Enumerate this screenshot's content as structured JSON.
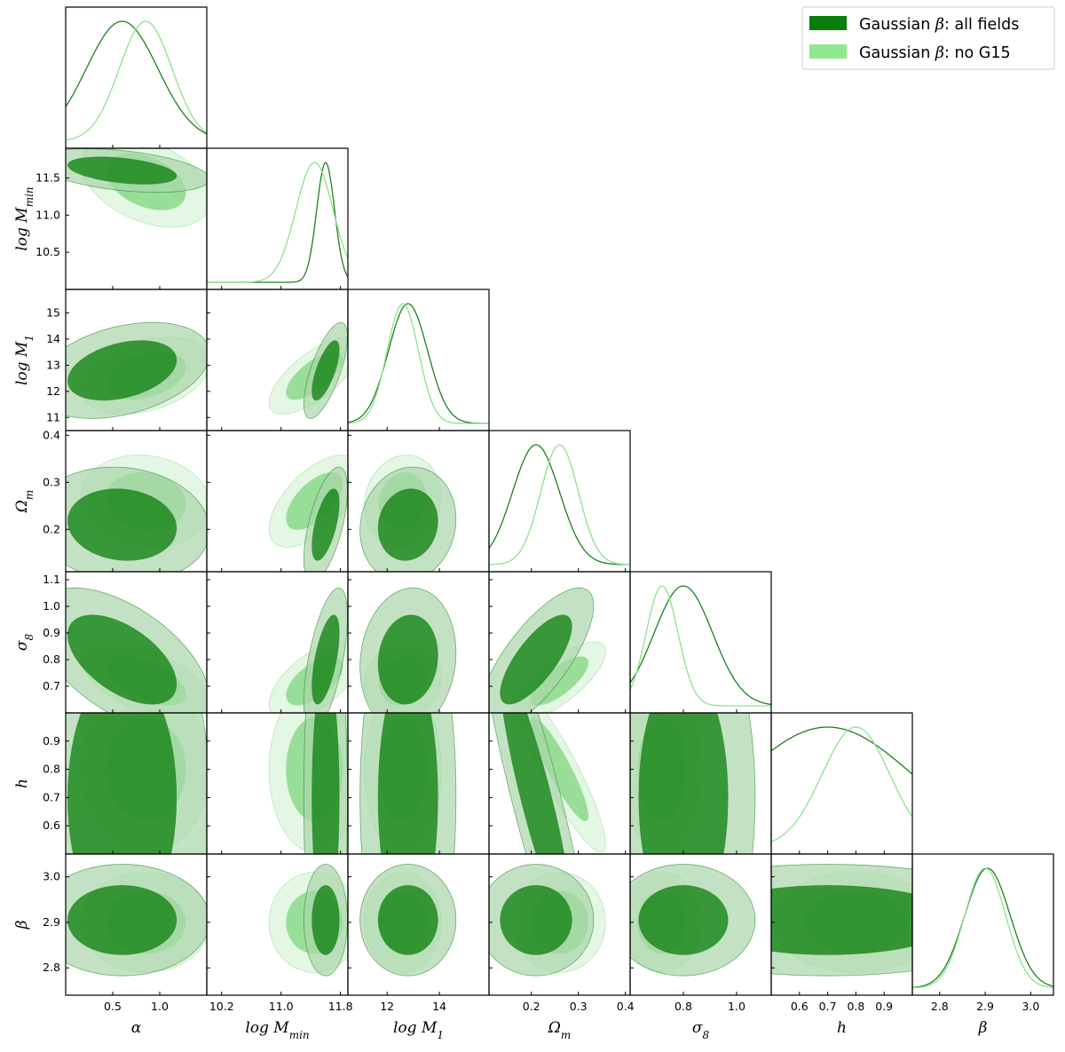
{
  "chart_data": {
    "type": "corner",
    "title": "",
    "parameters": [
      {
        "key": "alpha",
        "label": "α",
        "range": [
          0.0,
          1.5
        ],
        "ticks": [
          0.5,
          1.0
        ],
        "tick_labels": [
          "0.5",
          "1.0"
        ]
      },
      {
        "key": "logMmin",
        "label": "log M",
        "label_sub": "min",
        "range": [
          10.0,
          11.9
        ],
        "ticks": [
          10.2,
          11.0,
          11.8
        ],
        "tick_labels": [
          "10.2",
          "11.0",
          "11.8"
        ],
        "y_ticks": [
          10.5,
          11.0,
          11.5
        ],
        "y_tick_labels": [
          "10.5",
          "11.0",
          "11.5"
        ]
      },
      {
        "key": "logM1",
        "label": "log M",
        "label_sub": "1",
        "range": [
          10.5,
          15.9
        ],
        "ticks": [
          12,
          14
        ],
        "tick_labels": [
          "12",
          "14"
        ],
        "y_ticks": [
          11,
          12,
          13,
          14,
          15
        ],
        "y_tick_labels": [
          "11",
          "12",
          "13",
          "14",
          "15"
        ]
      },
      {
        "key": "Om",
        "label": "Ω",
        "label_sub": "m",
        "range": [
          0.11,
          0.41
        ],
        "ticks": [
          0.2,
          0.3,
          0.4
        ],
        "tick_labels": [
          "0.2",
          "0.3",
          "0.4"
        ]
      },
      {
        "key": "s8",
        "label": "σ",
        "label_sub": "8",
        "range": [
          0.6,
          1.13
        ],
        "ticks": [
          0.8,
          1.0
        ],
        "tick_labels": [
          "0.8",
          "1.0"
        ],
        "y_ticks": [
          0.7,
          0.8,
          0.9,
          1.0,
          1.1
        ],
        "y_tick_labels": [
          "0.7",
          "0.8",
          "0.9",
          "1.0",
          "1.1"
        ]
      },
      {
        "key": "h",
        "label": "h",
        "range": [
          0.5,
          1.0
        ],
        "ticks": [
          0.6,
          0.7,
          0.8,
          0.9
        ],
        "tick_labels": [
          "0.6",
          "0.7",
          "0.8",
          "0.9"
        ]
      },
      {
        "key": "beta",
        "label": "β",
        "range": [
          2.74,
          3.05
        ],
        "ticks": [
          2.8,
          2.9,
          3.0
        ],
        "tick_labels": [
          "2.8",
          "2.9",
          "3.0"
        ]
      }
    ],
    "series": [
      {
        "name": "Gaussian β: all fields",
        "legend_name": "Gaussian",
        "legend_suffix": ": all fields",
        "color_dark": "#0a7d0a",
        "color_light": "#a9d5a9",
        "line": "#1f7f1f",
        "means": {
          "alpha": 0.6,
          "logMmin": 11.6,
          "logM1": 12.8,
          "Om": 0.21,
          "s8": 0.8,
          "h": 0.7,
          "beta": 2.905
        },
        "sigmas": {
          "alpha": 0.38,
          "logMmin": 0.12,
          "logM1": 0.75,
          "Om": 0.05,
          "s8": 0.11,
          "h": 0.3,
          "beta": 0.05
        }
      },
      {
        "name": "Gaussian β: no G15",
        "legend_name": "Gaussian",
        "legend_suffix": ": no G15",
        "color_dark": "#7fd67f",
        "color_light": "#d8f2d8",
        "line": "#8fe08f",
        "means": {
          "alpha": 0.85,
          "logMmin": 11.45,
          "logM1": 12.6,
          "Om": 0.26,
          "s8": 0.72,
          "h": 0.8,
          "beta": 2.9
        },
        "sigmas": {
          "alpha": 0.28,
          "logMmin": 0.25,
          "logM1": 0.6,
          "Om": 0.04,
          "s8": 0.06,
          "h": 0.12,
          "beta": 0.045
        }
      }
    ],
    "legend_position": "top-right",
    "grid": false
  },
  "colors": {
    "frame": "#000000"
  }
}
